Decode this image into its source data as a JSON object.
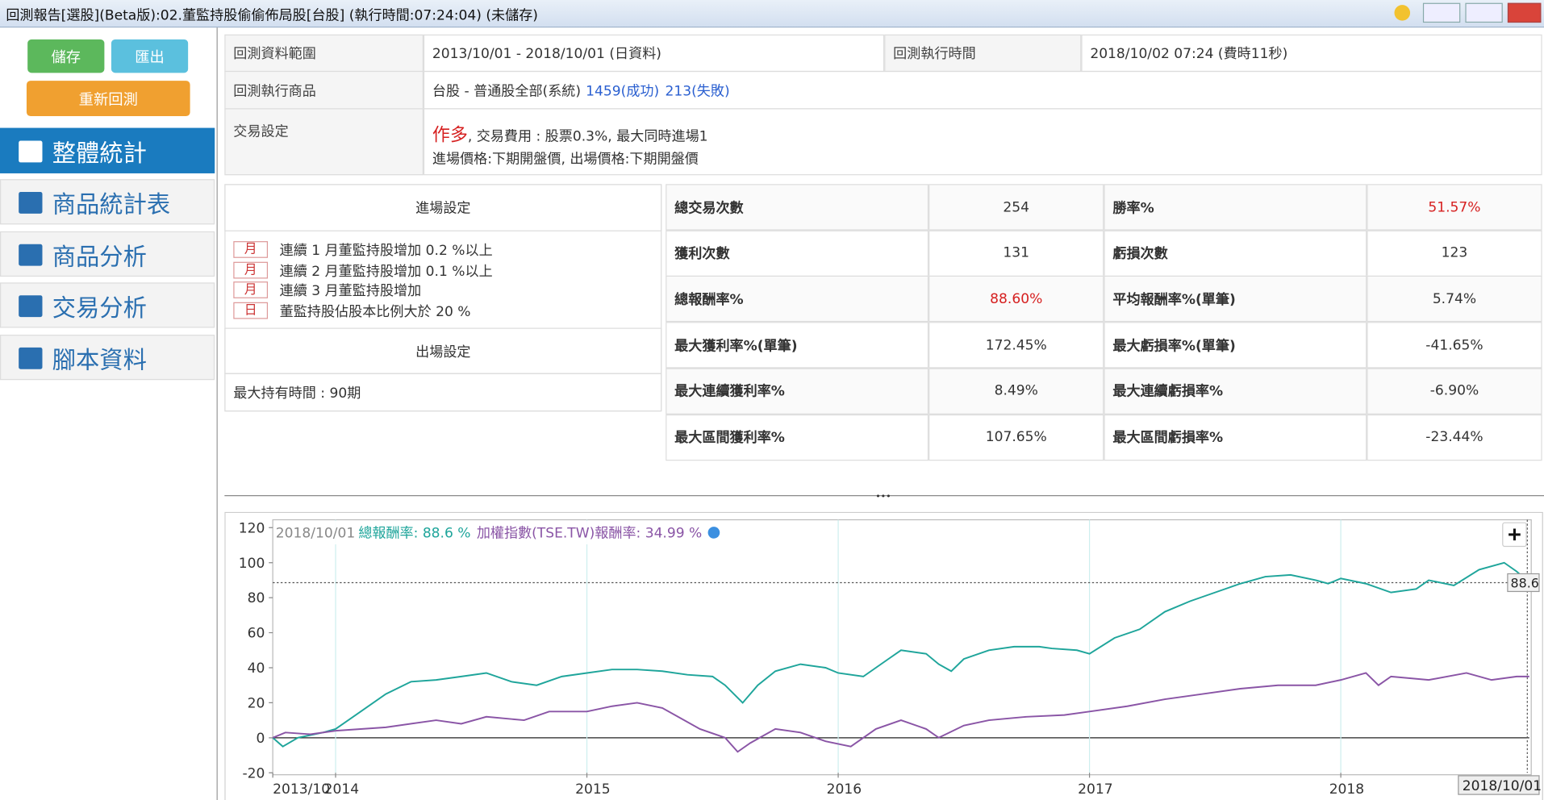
{
  "window": {
    "title": "回測報告[選股](Beta版):02.董監持股偷偷佈局股[台股] (執行時間:07:24:04) (未儲存)"
  },
  "toolbar": {
    "save": "儲存",
    "export": "匯出",
    "rerun": "重新回測"
  },
  "nav": [
    "整體統計",
    "商品統計表",
    "商品分析",
    "交易分析",
    "腳本資料"
  ],
  "info": {
    "range_label": "回測資料範圍",
    "range": "2013/10/01 - 2018/10/01 (日資料)",
    "time_label": "回測執行時間",
    "time": "2018/10/02 07:24 (費時11秒)",
    "product_label": "回測執行商品",
    "product": "台股 - 普通股全部(系統)",
    "success": "1459(成功)",
    "fail": "213(失敗)",
    "trade_label": "交易設定",
    "direction": "作多",
    "fee": ", 交易費用 : 股票0.3%, 最大同時進場1",
    "price": "進場價格:下期開盤價, 出場價格:下期開盤價"
  },
  "entry": {
    "title": "進場設定",
    "rules": [
      {
        "freq": "月",
        "text": "連續 1 月董監持股增加 0.2 %以上"
      },
      {
        "freq": "月",
        "text": "連續 2 月董監持股增加 0.1 %以上"
      },
      {
        "freq": "月",
        "text": "連續 3 月董監持股增加"
      },
      {
        "freq": "日",
        "text": "董監持股佔股本比例大於 20 %"
      }
    ]
  },
  "exit": {
    "title": "出場設定",
    "text": "最大持有時間 : 90期"
  },
  "stats": [
    [
      "總交易次數",
      "254",
      "勝率%",
      "51.57%"
    ],
    [
      "獲利次數",
      "131",
      "虧損次數",
      "123"
    ],
    [
      "總報酬率%",
      "88.60%",
      "平均報酬率%(單筆)",
      "5.74%"
    ],
    [
      "最大獲利率%(單筆)",
      "172.45%",
      "最大虧損率%(單筆)",
      "-41.65%"
    ],
    [
      "最大連續獲利率%",
      "8.49%",
      "最大連續虧損率%",
      "-6.90%"
    ],
    [
      "最大區間獲利率%",
      "107.65%",
      "最大區間虧損率%",
      "-23.44%"
    ]
  ],
  "chart_data": {
    "type": "line",
    "crosshair_date": "2018/10/01",
    "crosshair_value": 88.6,
    "xlim": [
      2013.75,
      2018.75
    ],
    "xticks": [
      {
        "value": 2013.75,
        "label": "2013/10"
      },
      2014,
      2015,
      2016,
      2017,
      2018
    ],
    "ylim": [
      -20,
      120
    ],
    "yticks": [
      -20,
      0,
      20,
      40,
      60,
      80,
      100,
      120
    ],
    "grid": true,
    "series": [
      {
        "name": "總報酬率: 88.6 %",
        "color": "#1fa59b",
        "x": [
          2013.75,
          2013.79,
          2013.85,
          2013.95,
          2014.0,
          2014.1,
          2014.2,
          2014.3,
          2014.4,
          2014.5,
          2014.6,
          2014.7,
          2014.8,
          2014.9,
          2015.0,
          2015.1,
          2015.2,
          2015.3,
          2015.4,
          2015.5,
          2015.55,
          2015.62,
          2015.68,
          2015.75,
          2015.85,
          2015.95,
          2016.0,
          2016.1,
          2016.2,
          2016.25,
          2016.35,
          2016.4,
          2016.45,
          2016.5,
          2016.6,
          2016.7,
          2016.8,
          2016.85,
          2016.95,
          2017.0,
          2017.1,
          2017.2,
          2017.3,
          2017.4,
          2017.5,
          2017.6,
          2017.7,
          2017.8,
          2017.9,
          2017.95,
          2018.0,
          2018.1,
          2018.2,
          2018.3,
          2018.35,
          2018.45,
          2018.55,
          2018.65,
          2018.7,
          2018.75
        ],
        "values": [
          0,
          -5,
          0,
          3,
          5,
          15,
          25,
          32,
          33,
          35,
          37,
          32,
          30,
          35,
          37,
          39,
          39,
          38,
          36,
          35,
          30,
          20,
          30,
          38,
          42,
          40,
          37,
          35,
          45,
          50,
          48,
          42,
          38,
          45,
          50,
          52,
          52,
          51,
          50,
          48,
          57,
          62,
          72,
          78,
          83,
          88,
          92,
          93,
          90,
          88,
          91,
          88,
          83,
          85,
          90,
          87,
          96,
          100,
          95,
          88.6
        ]
      },
      {
        "name": "加權指數(TSE.TW)報酬率: 34.99 %",
        "color": "#8a55a6",
        "x": [
          2013.75,
          2013.8,
          2013.9,
          2014.0,
          2014.2,
          2014.4,
          2014.5,
          2014.6,
          2014.75,
          2014.85,
          2015.0,
          2015.1,
          2015.2,
          2015.3,
          2015.45,
          2015.55,
          2015.6,
          2015.65,
          2015.75,
          2015.85,
          2015.95,
          2016.05,
          2016.15,
          2016.25,
          2016.35,
          2016.4,
          2016.5,
          2016.6,
          2016.75,
          2016.9,
          2017.0,
          2017.15,
          2017.3,
          2017.45,
          2017.6,
          2017.75,
          2017.9,
          2018.0,
          2018.1,
          2018.15,
          2018.2,
          2018.35,
          2018.5,
          2018.6,
          2018.7,
          2018.75
        ],
        "values": [
          0,
          3,
          2,
          4,
          6,
          10,
          8,
          12,
          10,
          15,
          15,
          18,
          20,
          17,
          5,
          0,
          -8,
          -3,
          5,
          3,
          -2,
          -5,
          5,
          10,
          5,
          0,
          7,
          10,
          12,
          13,
          15,
          18,
          22,
          25,
          28,
          30,
          30,
          33,
          37,
          30,
          35,
          33,
          37,
          33,
          35,
          34.99
        ]
      }
    ]
  }
}
